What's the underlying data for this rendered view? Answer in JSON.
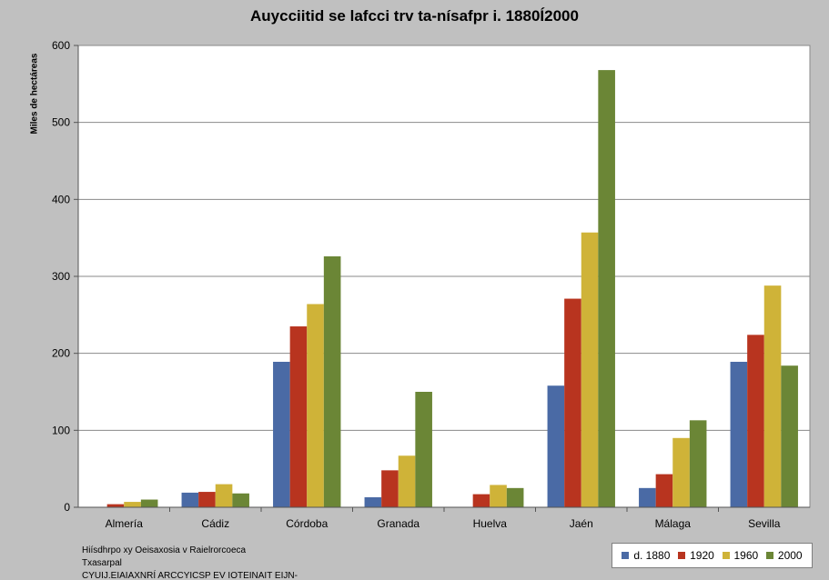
{
  "chart_data": {
    "type": "bar",
    "title": "Auycciitid se lafcci trv ta-nísafpr i. 1880Í2000",
    "ylabel": "Miles de hectáreas",
    "xlabel": "",
    "ylim": [
      0,
      600
    ],
    "yticks": [
      0,
      100,
      200,
      300,
      400,
      500,
      600
    ],
    "grid": true,
    "legend_position": "bottom-right",
    "categories": [
      "Almería",
      "Cádiz",
      "Córdoba",
      "Granada",
      "Huelva",
      "Jaén",
      "Málaga",
      "Sevilla"
    ],
    "series": [
      {
        "name": "d. 1880",
        "color": "#4a6aa5",
        "values": [
          0,
          19,
          189,
          13,
          0,
          158,
          25,
          189
        ]
      },
      {
        "name": "1920",
        "color": "#b8341f",
        "values": [
          4,
          20,
          235,
          48,
          17,
          271,
          43,
          224
        ]
      },
      {
        "name": "1960",
        "color": "#cfb338",
        "values": [
          7,
          30,
          264,
          67,
          29,
          357,
          90,
          288
        ]
      },
      {
        "name": "2000",
        "color": "#6b8636",
        "values": [
          10,
          18,
          326,
          150,
          25,
          568,
          113,
          184
        ]
      }
    ]
  },
  "source": {
    "line1": "Hiísdhrpo xy Oeisaxosia v Raielrorcoeca",
    "line2": "Txasarpal",
    "line3": "CYUIJ.EIAIAXNRÍ ARCCYICSP EV IOTEINAIT EIJN-"
  }
}
